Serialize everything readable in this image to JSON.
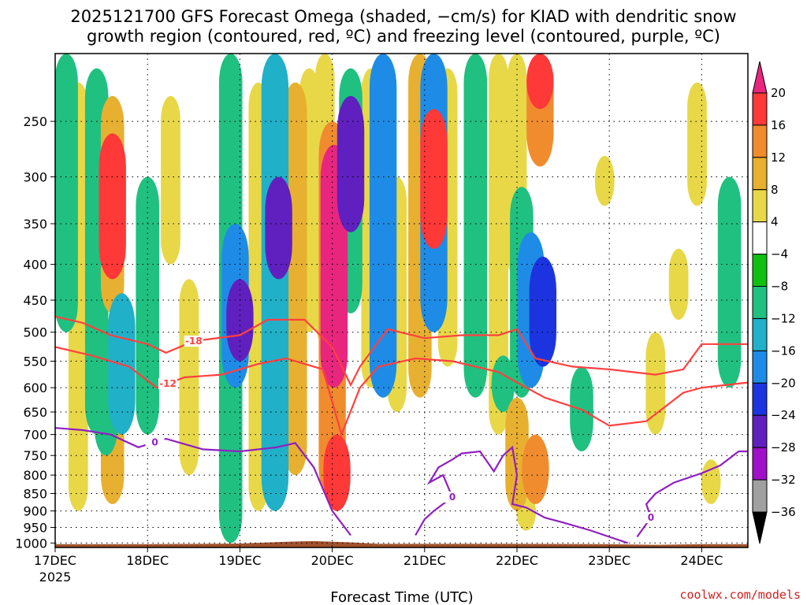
{
  "title_line1": "2025121700 GFS Forecast Omega (shaded, −cm/s) for KIAD with dendritic snow",
  "title_line2": "growth region (contoured, red, ºC) and freezing level (contoured, purple, ºC)",
  "credit": "coolwx.com/models",
  "chart_data": {
    "type": "heatmap",
    "xlabel": "Forecast Time (UTC)",
    "ylabel": "",
    "x_ticks": [
      "17DEC",
      "18DEC",
      "19DEC",
      "20DEC",
      "21DEC",
      "22DEC",
      "23DEC",
      "24DEC"
    ],
    "x_tick_sublabel": "2025",
    "x_range_days": [
      0,
      7.5
    ],
    "y_ticks": [
      250,
      300,
      350,
      400,
      450,
      500,
      550,
      600,
      650,
      700,
      750,
      800,
      850,
      900,
      950,
      1000
    ],
    "y_range_hpa": [
      200,
      1015
    ],
    "y_scale": "log-pressure",
    "grid": "dotted",
    "colorbar": {
      "labels": [
        "20",
        "16",
        "12",
        "8",
        "4",
        "−4",
        "−8",
        "−12",
        "−16",
        "−20",
        "−24",
        "−28",
        "−32",
        "−36"
      ],
      "colors": [
        "#e8267e",
        "#ff3838",
        "#f08c2e",
        "#e8b030",
        "#e8d848",
        "#ffffff",
        "#10c010",
        "#20c080",
        "#20b0c8",
        "#1e8ce6",
        "#1c34e0",
        "#6020c0",
        "#a010c8",
        "#a0a0a0",
        "#000000"
      ]
    },
    "omega_features": [
      {
        "day": 0.12,
        "p_top": 200,
        "p_bot": 500,
        "value": -8
      },
      {
        "day": 0.25,
        "p_top": 220,
        "p_bot": 900,
        "value": 4
      },
      {
        "day": 0.45,
        "p_top": 210,
        "p_bot": 700,
        "value": -8
      },
      {
        "day": 0.62,
        "p_top": 260,
        "p_bot": 420,
        "value": 16
      },
      {
        "day": 0.62,
        "p_top": 230,
        "p_bot": 470,
        "value": 8
      },
      {
        "day": 0.62,
        "p_top": 580,
        "p_bot": 880,
        "value": 8
      },
      {
        "day": 0.72,
        "p_top": 440,
        "p_bot": 700,
        "value": -12
      },
      {
        "day": 0.55,
        "p_top": 500,
        "p_bot": 750,
        "value": -8
      },
      {
        "day": 1.0,
        "p_top": 300,
        "p_bot": 700,
        "value": -8
      },
      {
        "day": 1.25,
        "p_top": 230,
        "p_bot": 400,
        "value": 4
      },
      {
        "day": 1.45,
        "p_top": 420,
        "p_bot": 800,
        "value": 4
      },
      {
        "day": 1.9,
        "p_top": 200,
        "p_bot": 1000,
        "value": -8
      },
      {
        "day": 1.95,
        "p_top": 350,
        "p_bot": 600,
        "value": -16
      },
      {
        "day": 2.0,
        "p_top": 420,
        "p_bot": 550,
        "value": -24
      },
      {
        "day": 2.2,
        "p_top": 220,
        "p_bot": 900,
        "value": 4
      },
      {
        "day": 2.38,
        "p_top": 200,
        "p_bot": 900,
        "value": -12
      },
      {
        "day": 2.42,
        "p_top": 300,
        "p_bot": 420,
        "value": -24
      },
      {
        "day": 2.6,
        "p_top": 220,
        "p_bot": 800,
        "value": 8
      },
      {
        "day": 2.75,
        "p_top": 210,
        "p_bot": 500,
        "value": 4
      },
      {
        "day": 2.92,
        "p_top": 200,
        "p_bot": 520,
        "value": 4
      },
      {
        "day": 3.0,
        "p_top": 250,
        "p_bot": 870,
        "value": 12
      },
      {
        "day": 3.02,
        "p_top": 270,
        "p_bot": 600,
        "value": 20
      },
      {
        "day": 3.05,
        "p_top": 700,
        "p_bot": 900,
        "value": 16
      },
      {
        "day": 3.2,
        "p_top": 210,
        "p_bot": 470,
        "value": -8
      },
      {
        "day": 3.2,
        "p_top": 230,
        "p_bot": 360,
        "value": -24
      },
      {
        "day": 3.42,
        "p_top": 210,
        "p_bot": 600,
        "value": 4
      },
      {
        "day": 3.55,
        "p_top": 200,
        "p_bot": 620,
        "value": -16
      },
      {
        "day": 3.7,
        "p_top": 300,
        "p_bot": 650,
        "value": 4
      },
      {
        "day": 3.95,
        "p_top": 200,
        "p_bot": 620,
        "value": 8
      },
      {
        "day": 4.1,
        "p_top": 200,
        "p_bot": 500,
        "value": -16
      },
      {
        "day": 4.1,
        "p_top": 240,
        "p_bot": 380,
        "value": 16
      },
      {
        "day": 4.25,
        "p_top": 210,
        "p_bot": 560,
        "value": 4
      },
      {
        "day": 4.55,
        "p_top": 200,
        "p_bot": 620,
        "value": -8
      },
      {
        "day": 4.8,
        "p_top": 200,
        "p_bot": 700,
        "value": 4
      },
      {
        "day": 4.85,
        "p_top": 540,
        "p_bot": 650,
        "value": -8
      },
      {
        "day": 5.0,
        "p_top": 200,
        "p_bot": 420,
        "value": 4
      },
      {
        "day": 5.05,
        "p_top": 310,
        "p_bot": 620,
        "value": -8
      },
      {
        "day": 5.15,
        "p_top": 360,
        "p_bot": 600,
        "value": -16
      },
      {
        "day": 5.28,
        "p_top": 390,
        "p_bot": 560,
        "value": -20
      },
      {
        "day": 5.25,
        "p_top": 200,
        "p_bot": 290,
        "value": 12
      },
      {
        "day": 5.25,
        "p_top": 200,
        "p_bot": 240,
        "value": 16
      },
      {
        "day": 5.0,
        "p_top": 620,
        "p_bot": 900,
        "value": 8
      },
      {
        "day": 5.2,
        "p_top": 700,
        "p_bot": 880,
        "value": 12
      },
      {
        "day": 5.1,
        "p_top": 850,
        "p_bot": 960,
        "value": 4
      },
      {
        "day": 5.7,
        "p_top": 560,
        "p_bot": 740,
        "value": -8
      },
      {
        "day": 5.95,
        "p_top": 280,
        "p_bot": 330,
        "value": 4
      },
      {
        "day": 6.5,
        "p_top": 500,
        "p_bot": 700,
        "value": 4
      },
      {
        "day": 6.75,
        "p_top": 380,
        "p_bot": 480,
        "value": 4
      },
      {
        "day": 6.95,
        "p_top": 220,
        "p_bot": 330,
        "value": 4
      },
      {
        "day": 7.3,
        "p_top": 300,
        "p_bot": 600,
        "value": -8
      },
      {
        "day": 7.1,
        "p_top": 760,
        "p_bot": 880,
        "value": 4
      }
    ],
    "contours": [
      {
        "name": "-18",
        "color": "#ff4040",
        "label_day": 1.5,
        "points": [
          [
            0,
            475
          ],
          [
            0.3,
            485
          ],
          [
            0.6,
            505
          ],
          [
            1.0,
            520
          ],
          [
            1.2,
            535
          ],
          [
            1.5,
            515
          ],
          [
            2.0,
            505
          ],
          [
            2.3,
            480
          ],
          [
            2.7,
            480
          ],
          [
            3.0,
            525
          ],
          [
            3.2,
            595
          ],
          [
            3.3,
            560
          ],
          [
            3.6,
            495
          ],
          [
            4.0,
            510
          ],
          [
            4.4,
            505
          ],
          [
            4.8,
            505
          ],
          [
            5.0,
            495
          ],
          [
            5.2,
            545
          ],
          [
            5.6,
            560
          ],
          [
            6.0,
            565
          ],
          [
            6.5,
            575
          ],
          [
            6.8,
            565
          ],
          [
            7.0,
            520
          ],
          [
            7.5,
            520
          ]
        ]
      },
      {
        "name": "-12",
        "color": "#ff4040",
        "label_day": 1.22,
        "points": [
          [
            0,
            525
          ],
          [
            0.4,
            540
          ],
          [
            0.8,
            560
          ],
          [
            1.1,
            600
          ],
          [
            1.4,
            580
          ],
          [
            1.8,
            575
          ],
          [
            2.2,
            555
          ],
          [
            2.5,
            545
          ],
          [
            2.9,
            565
          ],
          [
            3.1,
            700
          ],
          [
            3.3,
            600
          ],
          [
            3.5,
            560
          ],
          [
            3.9,
            545
          ],
          [
            4.3,
            550
          ],
          [
            4.8,
            570
          ],
          [
            5.0,
            590
          ],
          [
            5.3,
            620
          ],
          [
            5.7,
            645
          ],
          [
            6.0,
            680
          ],
          [
            6.4,
            670
          ],
          [
            6.8,
            610
          ],
          [
            7.0,
            600
          ],
          [
            7.5,
            590
          ]
        ]
      },
      {
        "name": "0",
        "color": "#9020c0",
        "label_day": 4.3,
        "points": [
          [
            3.9,
            975
          ],
          [
            4.0,
            925
          ],
          [
            4.1,
            900
          ],
          [
            4.3,
            860
          ],
          [
            4.2,
            800
          ],
          [
            4.05,
            820
          ],
          [
            4.15,
            780
          ],
          [
            4.3,
            760
          ],
          [
            4.4,
            745
          ],
          [
            4.6,
            740
          ],
          [
            4.75,
            790
          ],
          [
            4.85,
            750
          ],
          [
            4.95,
            730
          ],
          [
            5.0,
            800
          ],
          [
            4.95,
            880
          ],
          [
            5.1,
            890
          ],
          [
            5.3,
            920
          ],
          [
            5.5,
            935
          ],
          [
            5.8,
            960
          ],
          [
            6.0,
            980
          ],
          [
            6.2,
            1000
          ]
        ]
      },
      {
        "name": "0",
        "color": "#9020c0",
        "label_day": 1.08,
        "points": [
          [
            0,
            685
          ],
          [
            0.3,
            690
          ],
          [
            0.6,
            700
          ],
          [
            0.9,
            730
          ],
          [
            1.2,
            710
          ],
          [
            1.6,
            735
          ],
          [
            2.0,
            740
          ],
          [
            2.4,
            730
          ],
          [
            2.6,
            720
          ],
          [
            2.8,
            780
          ],
          [
            3.0,
            900
          ],
          [
            3.2,
            975
          ]
        ]
      },
      {
        "name": "0",
        "color": "#9020c0",
        "label_day": 6.45,
        "points": [
          [
            6.3,
            980
          ],
          [
            6.45,
            920
          ],
          [
            6.4,
            880
          ],
          [
            6.5,
            850
          ],
          [
            6.7,
            820
          ],
          [
            7.0,
            795
          ],
          [
            7.2,
            775
          ],
          [
            7.4,
            740
          ],
          [
            7.5,
            740
          ]
        ]
      }
    ]
  }
}
